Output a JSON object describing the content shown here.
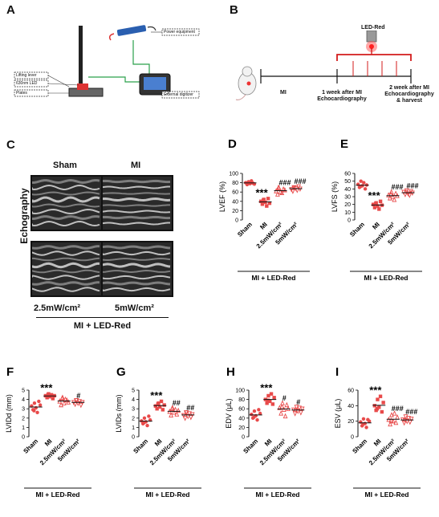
{
  "panels": {
    "A": {
      "letter": "A",
      "labels": {
        "lifting": "Lifting lever",
        "led": "630nm LED",
        "plates": "Plates",
        "power": "Power equipment",
        "digitizer": "External digitizer"
      }
    },
    "B": {
      "letter": "B",
      "led_label": "LED-Red",
      "mi_label": "MI",
      "one_week": [
        "1 week after MI",
        "Echocardiography"
      ],
      "two_week": [
        "2 week after MI",
        "Echocardiography",
        "& harvest"
      ]
    },
    "C": {
      "letter": "C",
      "side_label": "Echography",
      "sham": "Sham",
      "mi": "MI",
      "dose1": "2.5mW/cm²",
      "dose2": "5mW/cm²",
      "group": "MI + LED-Red"
    }
  },
  "group_label": "MI + LED-Red",
  "chart_data": [
    {
      "panel": "D",
      "type": "scatter",
      "ylabel": "LVEF (%)",
      "ylim": [
        0,
        100
      ],
      "yticks": [
        0,
        20,
        40,
        60,
        80,
        100
      ],
      "categories": [
        "Sham",
        "MI",
        "2.5mW/cm²",
        "5mW/cm²"
      ],
      "series": [
        {
          "values": [
            80,
            76,
            82,
            78,
            84,
            79,
            77,
            81
          ],
          "marker": "circle",
          "color": "#e84a4a"
        },
        {
          "values": [
            40,
            34,
            44,
            38,
            30,
            46,
            36,
            42
          ],
          "marker": "square",
          "color": "#e84a4a"
        },
        {
          "values": [
            62,
            55,
            68,
            60,
            58,
            66,
            64,
            70
          ],
          "marker": "triangle",
          "color": "#e84a4a"
        },
        {
          "values": [
            66,
            62,
            70,
            68,
            64,
            72,
            67,
            69
          ],
          "marker": "triangle-down",
          "color": "#e84a4a"
        }
      ],
      "annotations": [
        "",
        "***",
        "###",
        "###"
      ]
    },
    {
      "panel": "E",
      "type": "scatter",
      "ylabel": "LVFS (%)",
      "ylim": [
        0,
        60
      ],
      "yticks": [
        0,
        10,
        20,
        30,
        40,
        50,
        60
      ],
      "categories": [
        "Sham",
        "MI",
        "2.5mW/cm²",
        "5mW/cm²"
      ],
      "series": [
        {
          "values": [
            46,
            42,
            50,
            44,
            48,
            40,
            45,
            43
          ],
          "marker": "circle",
          "color": "#e84a4a"
        },
        {
          "values": [
            20,
            16,
            22,
            18,
            14,
            24,
            19,
            21
          ],
          "marker": "square",
          "color": "#e84a4a"
        },
        {
          "values": [
            32,
            28,
            36,
            30,
            26,
            34,
            31,
            33
          ],
          "marker": "triangle",
          "color": "#e84a4a"
        },
        {
          "values": [
            36,
            33,
            38,
            34,
            32,
            37,
            35,
            36
          ],
          "marker": "triangle-down",
          "color": "#e84a4a"
        }
      ],
      "annotations": [
        "",
        "***",
        "###",
        "###"
      ]
    },
    {
      "panel": "F",
      "type": "scatter",
      "ylabel": "LVIDd (mm)",
      "ylim": [
        0,
        5
      ],
      "yticks": [
        0,
        1,
        2,
        3,
        4,
        5
      ],
      "categories": [
        "Sham",
        "MI",
        "2.5mW/cm²",
        "5mW/cm²"
      ],
      "series": [
        {
          "values": [
            3.3,
            2.9,
            3.6,
            3.1,
            2.6,
            3.8,
            3.4,
            2.8
          ],
          "marker": "circle",
          "color": "#e84a4a"
        },
        {
          "values": [
            4.4,
            4.2,
            4.6,
            4.3,
            4.5,
            4.1,
            4.4,
            4.5
          ],
          "marker": "square",
          "color": "#e84a4a"
        },
        {
          "values": [
            3.8,
            3.4,
            4.2,
            3.6,
            4.0,
            3.9,
            3.7,
            4.1
          ],
          "marker": "triangle",
          "color": "#e84a4a"
        },
        {
          "values": [
            3.7,
            3.5,
            3.9,
            3.6,
            3.8,
            3.4,
            3.7,
            3.9
          ],
          "marker": "triangle-down",
          "color": "#e84a4a"
        }
      ],
      "annotations": [
        "",
        "***",
        "",
        "#"
      ]
    },
    {
      "panel": "G",
      "type": "scatter",
      "ylabel": "LVIDs (mm)",
      "ylim": [
        0,
        5
      ],
      "yticks": [
        0,
        1,
        2,
        3,
        4,
        5
      ],
      "categories": [
        "Sham",
        "MI",
        "2.5mW/cm²",
        "5mW/cm²"
      ],
      "series": [
        {
          "values": [
            1.7,
            1.4,
            2.0,
            1.6,
            1.2,
            2.2,
            1.8,
            1.5
          ],
          "marker": "circle",
          "color": "#e84a4a"
        },
        {
          "values": [
            3.3,
            3.0,
            3.6,
            3.2,
            3.8,
            2.9,
            3.4,
            3.5
          ],
          "marker": "square",
          "color": "#e84a4a"
        },
        {
          "values": [
            2.7,
            2.3,
            3.1,
            2.6,
            2.9,
            2.4,
            2.8,
            3.0
          ],
          "marker": "triangle",
          "color": "#e84a4a"
        },
        {
          "values": [
            2.3,
            2.0,
            2.6,
            2.2,
            2.5,
            2.1,
            2.4,
            2.6
          ],
          "marker": "triangle-down",
          "color": "#e84a4a"
        }
      ],
      "annotations": [
        "",
        "***",
        "##",
        "##"
      ]
    },
    {
      "panel": "H",
      "type": "scatter",
      "ylabel": "EDV (μL)",
      "ylim": [
        0,
        100
      ],
      "yticks": [
        0,
        20,
        40,
        60,
        80,
        100
      ],
      "categories": [
        "Sham",
        "MI",
        "2.5mW/cm²",
        "5mW/cm²"
      ],
      "series": [
        {
          "values": [
            48,
            40,
            55,
            45,
            36,
            58,
            50,
            42
          ],
          "marker": "circle",
          "color": "#e84a4a"
        },
        {
          "values": [
            80,
            72,
            88,
            76,
            92,
            70,
            84,
            78
          ],
          "marker": "square",
          "color": "#e84a4a"
        },
        {
          "values": [
            62,
            50,
            72,
            58,
            44,
            68,
            60,
            64
          ],
          "marker": "triangle",
          "color": "#e84a4a"
        },
        {
          "values": [
            58,
            50,
            64,
            55,
            62,
            52,
            60,
            57
          ],
          "marker": "triangle-down",
          "color": "#e84a4a"
        }
      ],
      "annotations": [
        "",
        "***",
        "#",
        "#"
      ]
    },
    {
      "panel": "I",
      "type": "scatter",
      "ylabel": "ESV (μL)",
      "ylim": [
        0,
        60
      ],
      "yticks": [
        0,
        20,
        40,
        60
      ],
      "categories": [
        "Sham",
        "MI",
        "2.5mW/cm²",
        "5mW/cm²"
      ],
      "series": [
        {
          "values": [
            19,
            14,
            23,
            17,
            12,
            22,
            20,
            16
          ],
          "marker": "circle",
          "color": "#e84a4a"
        },
        {
          "values": [
            40,
            34,
            48,
            38,
            52,
            32,
            44,
            36
          ],
          "marker": "square",
          "color": "#e84a4a"
        },
        {
          "values": [
            22,
            16,
            28,
            20,
            30,
            18,
            25,
            21
          ],
          "marker": "triangle",
          "color": "#e84a4a"
        },
        {
          "values": [
            22,
            18,
            26,
            20,
            24,
            19,
            23,
            21
          ],
          "marker": "triangle-down",
          "color": "#e84a4a"
        }
      ],
      "annotations": [
        "",
        "***",
        "###",
        "###"
      ]
    }
  ]
}
